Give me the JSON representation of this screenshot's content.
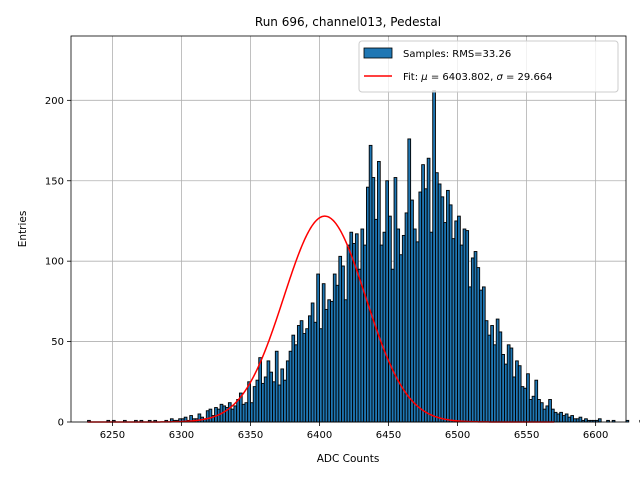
{
  "chart_data": {
    "type": "bar",
    "title": "Run 696, channel013, Pedestal",
    "xlabel": "ADC Counts",
    "ylabel": "Entries",
    "xlim": [
      6220,
      6622
    ],
    "ylim": [
      0,
      240
    ],
    "x_ticks": [
      6250,
      6300,
      6350,
      6400,
      6450,
      6500,
      6550,
      6600
    ],
    "y_ticks": [
      0,
      50,
      100,
      150,
      200
    ],
    "grid": true,
    "legend_position": "top-right",
    "legend": [
      "Samples: RMS=33.26",
      "Fit: $\\mu$ = 6403.802, $\\sigma$ = 29.664"
    ],
    "legend_rendered": {
      "samples": "Samples: RMS=33.26",
      "fit_prefix": "Fit: ",
      "mu_symbol": "μ",
      "mu_value": " = 6403.802, ",
      "sigma_symbol": "σ",
      "sigma_value": " = 29.664"
    },
    "histogram": {
      "name": "Samples: RMS=33.26",
      "bin_width": 2,
      "bin_start": 6232,
      "counts": [
        1,
        0,
        0,
        0,
        0,
        0,
        0,
        1,
        0,
        1,
        0,
        0,
        0,
        1,
        0,
        0,
        0,
        1,
        0,
        1,
        0,
        0,
        1,
        0,
        1,
        0,
        0,
        0,
        1,
        0,
        2,
        1,
        1,
        2,
        2,
        3,
        1,
        4,
        2,
        2,
        5,
        3,
        2,
        7,
        8,
        4,
        9,
        8,
        11,
        10,
        9,
        12,
        8,
        10,
        14,
        18,
        11,
        12,
        25,
        12,
        22,
        26,
        40,
        24,
        28,
        38,
        31,
        25,
        44,
        23,
        33,
        26,
        38,
        44,
        54,
        48,
        60,
        63,
        55,
        58,
        66,
        74,
        62,
        92,
        58,
        86,
        70,
        76,
        75,
        92,
        85,
        103,
        97,
        76,
        110,
        118,
        111,
        117,
        95,
        120,
        110,
        146,
        172,
        152,
        126,
        162,
        110,
        118,
        150,
        128,
        95,
        152,
        120,
        104,
        116,
        130,
        176,
        138,
        120,
        112,
        143,
        160,
        145,
        164,
        118,
        206,
        155,
        148,
        140,
        124,
        144,
        135,
        114,
        125,
        128,
        110,
        120,
        119,
        84,
        102,
        106,
        96,
        82,
        84,
        63,
        54,
        60,
        48,
        64,
        56,
        42,
        36,
        48,
        46,
        28,
        38,
        35,
        22,
        21,
        30,
        14,
        16,
        26,
        14,
        12,
        8,
        10,
        14,
        8,
        6,
        5,
        6,
        4,
        5,
        3,
        4,
        2,
        2,
        3,
        1,
        2,
        1,
        1,
        1,
        1,
        2,
        0,
        0,
        1,
        0,
        1,
        0,
        0,
        0,
        0,
        1,
        0,
        0,
        0,
        0,
        1,
        0,
        0,
        0,
        0,
        1,
        0,
        0,
        0,
        0,
        0,
        0,
        0,
        0,
        0,
        0,
        0,
        0,
        0,
        0,
        1
      ],
      "color": "#1f77b4"
    },
    "fit": {
      "name": "Fit: $\\mu$ = 6403.802, $\\sigma$ = 29.664",
      "mu": 6403.802,
      "sigma": 29.664,
      "amplitude": 128,
      "x_range": [
        6232,
        6570
      ],
      "color": "#ff0000"
    }
  }
}
